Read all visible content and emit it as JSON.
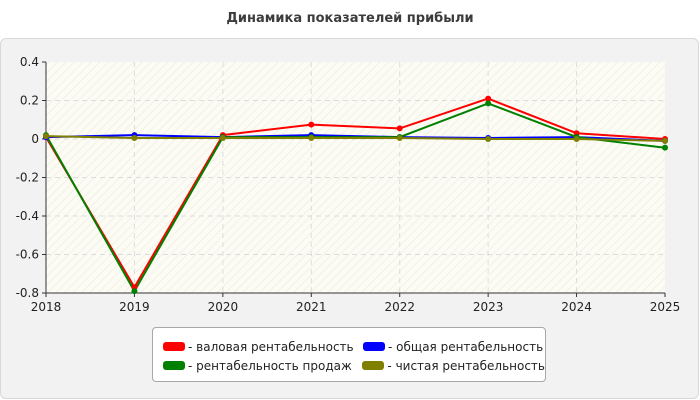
{
  "chart_data": {
    "type": "line",
    "title": "Динамика показателей прибыли",
    "x": [
      "2018",
      "2019",
      "2020",
      "2021",
      "2022",
      "2023",
      "2024",
      "2025"
    ],
    "ylim": [
      -0.8,
      0.4
    ],
    "yticks": [
      "0.4",
      "0.2",
      "0",
      "-0.2",
      "-0.4",
      "-0.6",
      "-0.8"
    ],
    "grid": true,
    "legend_position": "bottom",
    "series": [
      {
        "name": "- валовая рентабельность",
        "color": "#ff0000",
        "values": [
          0.01,
          -0.77,
          0.02,
          0.075,
          0.055,
          0.21,
          0.03,
          0.0
        ]
      },
      {
        "name": "- общая рентабельность",
        "color": "#0000ff",
        "values": [
          0.01,
          0.02,
          0.01,
          0.02,
          0.01,
          0.005,
          0.01,
          -0.01
        ]
      },
      {
        "name": "- рентабельность продаж",
        "color": "#008000",
        "values": [
          0.02,
          -0.79,
          0.01,
          0.01,
          0.01,
          0.185,
          0.01,
          -0.045
        ]
      },
      {
        "name": "- чистая рентабельность",
        "color": "#808000",
        "values": [
          0.015,
          0.005,
          0.005,
          0.005,
          0.005,
          0.0,
          0.0,
          -0.01
        ]
      }
    ]
  }
}
